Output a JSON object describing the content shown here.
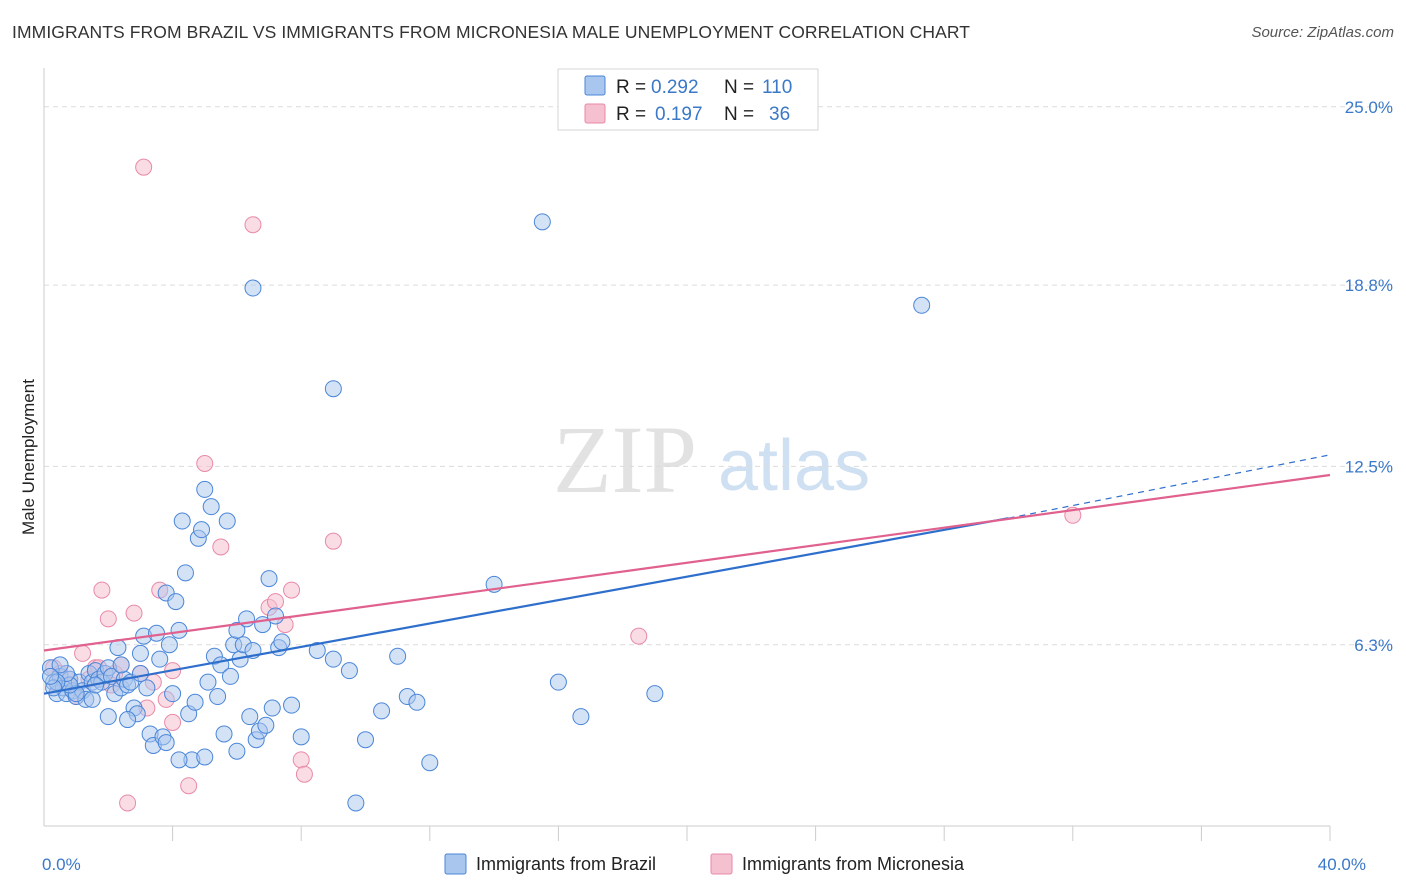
{
  "title": "IMMIGRANTS FROM BRAZIL VS IMMIGRANTS FROM MICRONESIA MALE UNEMPLOYMENT CORRELATION CHART",
  "source": "Source: ZipAtlas.com",
  "watermark": {
    "zip": "ZIP",
    "atlas": "atlas"
  },
  "colors": {
    "brazil_fill": "#a9c6ee",
    "brazil_stroke": "#4a86d8",
    "brazil_line": "#2f6fcc",
    "micronesia_fill": "#f5c0d0",
    "micronesia_stroke": "#e88aa8",
    "micronesia_line": "#e0608e",
    "tick_label": "#3a78c8",
    "grid": "#dcdcdc"
  },
  "legend": {
    "rows": [
      {
        "r_label": "R =",
        "r_value": "0.292",
        "n_label": "N =",
        "n_value": "110"
      },
      {
        "r_label": "R =",
        "r_value": "0.197",
        "n_label": "N =",
        "n_value": "36"
      }
    ]
  },
  "chart_data": {
    "type": "scatter",
    "title": "IMMIGRANTS FROM BRAZIL VS IMMIGRANTS FROM MICRONESIA MALE UNEMPLOYMENT CORRELATION CHART",
    "xlabel": "",
    "ylabel": "Male Unemployment",
    "xlim": [
      0,
      40
    ],
    "ylim": [
      0,
      26
    ],
    "x_tick_labels": [
      {
        "value": 0,
        "label": "0.0%"
      },
      {
        "value": 40,
        "label": "40.0%"
      }
    ],
    "y_tick_labels": [
      {
        "value": 6.3,
        "label": "6.3%"
      },
      {
        "value": 12.5,
        "label": "12.5%"
      },
      {
        "value": 18.8,
        "label": "18.8%"
      },
      {
        "value": 25.0,
        "label": "25.0%"
      }
    ],
    "x_minor_ticks": [
      4,
      8,
      12,
      16,
      20,
      24,
      28,
      32,
      36,
      40
    ],
    "legend_position": "top-center",
    "series": [
      {
        "name": "Immigrants from Brazil",
        "R": 0.292,
        "N": 110,
        "trend": {
          "x0": 0,
          "y0": 4.6,
          "x1": 30,
          "y1": 10.7,
          "dashed_to_x": 40,
          "dashed_to_y": 12.9
        },
        "points": [
          [
            0.2,
            5.5
          ],
          [
            0.3,
            5.0
          ],
          [
            0.4,
            4.6
          ],
          [
            0.5,
            5.2
          ],
          [
            0.6,
            4.8
          ],
          [
            0.7,
            4.6
          ],
          [
            0.8,
            5.1
          ],
          [
            0.9,
            4.7
          ],
          [
            1.0,
            4.5
          ],
          [
            1.1,
            5.0
          ],
          [
            1.2,
            4.7
          ],
          [
            1.3,
            4.4
          ],
          [
            1.4,
            5.3
          ],
          [
            1.5,
            5.0
          ],
          [
            1.6,
            5.4
          ],
          [
            1.7,
            5.1
          ],
          [
            1.8,
            5.0
          ],
          [
            1.9,
            5.3
          ],
          [
            2.0,
            5.5
          ],
          [
            2.1,
            5.2
          ],
          [
            2.2,
            4.6
          ],
          [
            2.3,
            6.2
          ],
          [
            2.4,
            4.8
          ],
          [
            2.5,
            5.1
          ],
          [
            2.6,
            4.9
          ],
          [
            2.7,
            5.0
          ],
          [
            2.8,
            4.1
          ],
          [
            2.9,
            3.9
          ],
          [
            3.0,
            6.0
          ],
          [
            3.1,
            6.6
          ],
          [
            3.2,
            4.8
          ],
          [
            3.3,
            3.2
          ],
          [
            3.4,
            2.8
          ],
          [
            3.5,
            6.7
          ],
          [
            3.6,
            5.8
          ],
          [
            3.7,
            3.1
          ],
          [
            3.8,
            8.1
          ],
          [
            3.9,
            6.3
          ],
          [
            4.0,
            4.6
          ],
          [
            4.1,
            7.8
          ],
          [
            4.2,
            6.8
          ],
          [
            4.3,
            10.6
          ],
          [
            4.4,
            8.8
          ],
          [
            4.5,
            3.9
          ],
          [
            4.6,
            2.3
          ],
          [
            4.7,
            4.3
          ],
          [
            4.8,
            10.0
          ],
          [
            4.9,
            10.3
          ],
          [
            5.0,
            11.7
          ],
          [
            5.1,
            5.0
          ],
          [
            5.2,
            11.1
          ],
          [
            5.3,
            5.9
          ],
          [
            5.4,
            4.5
          ],
          [
            5.5,
            5.6
          ],
          [
            5.6,
            3.2
          ],
          [
            5.7,
            10.6
          ],
          [
            5.8,
            5.2
          ],
          [
            5.9,
            6.3
          ],
          [
            6.0,
            6.8
          ],
          [
            6.1,
            5.8
          ],
          [
            6.2,
            6.3
          ],
          [
            6.3,
            7.2
          ],
          [
            6.4,
            3.8
          ],
          [
            6.5,
            6.1
          ],
          [
            6.6,
            3.0
          ],
          [
            6.7,
            3.3
          ],
          [
            6.8,
            7.0
          ],
          [
            6.9,
            3.5
          ],
          [
            7.0,
            8.6
          ],
          [
            7.1,
            4.1
          ],
          [
            7.2,
            7.3
          ],
          [
            7.3,
            6.2
          ],
          [
            7.4,
            6.4
          ],
          [
            8.0,
            3.1
          ],
          [
            8.5,
            6.1
          ],
          [
            9.0,
            5.8
          ],
          [
            9.5,
            5.4
          ],
          [
            10.0,
            3.0
          ],
          [
            10.5,
            4.0
          ],
          [
            11.0,
            5.9
          ],
          [
            11.3,
            4.5
          ],
          [
            11.6,
            4.3
          ],
          [
            12.0,
            2.2
          ],
          [
            14.0,
            8.4
          ],
          [
            16.0,
            5.0
          ],
          [
            16.7,
            3.8
          ],
          [
            19.0,
            4.6
          ],
          [
            6.5,
            18.7
          ],
          [
            9.0,
            15.2
          ],
          [
            15.5,
            21.0
          ],
          [
            27.3,
            18.1
          ],
          [
            9.7,
            0.8
          ],
          [
            5.0,
            2.4
          ],
          [
            4.2,
            2.3
          ],
          [
            3.8,
            2.9
          ],
          [
            2.6,
            3.7
          ],
          [
            2.0,
            3.8
          ],
          [
            1.5,
            4.4
          ],
          [
            1.0,
            4.6
          ],
          [
            0.8,
            4.9
          ],
          [
            0.7,
            5.3
          ],
          [
            0.5,
            5.6
          ],
          [
            0.4,
            5.0
          ],
          [
            0.3,
            4.8
          ],
          [
            0.2,
            5.2
          ],
          [
            1.6,
            4.9
          ],
          [
            2.4,
            5.6
          ],
          [
            3.0,
            5.3
          ],
          [
            6.0,
            2.6
          ],
          [
            7.7,
            4.2
          ]
        ]
      },
      {
        "name": "Immigrants from Micronesia",
        "R": 0.197,
        "N": 36,
        "trend": {
          "x0": 0,
          "y0": 6.1,
          "x1": 40,
          "y1": 12.2
        },
        "points": [
          [
            0.3,
            5.5
          ],
          [
            0.5,
            5.3
          ],
          [
            0.8,
            5.1
          ],
          [
            1.0,
            4.5
          ],
          [
            1.2,
            6.0
          ],
          [
            1.4,
            5.1
          ],
          [
            1.6,
            5.5
          ],
          [
            1.8,
            8.2
          ],
          [
            2.0,
            7.2
          ],
          [
            2.2,
            5.3
          ],
          [
            2.4,
            5.6
          ],
          [
            2.6,
            0.8
          ],
          [
            2.8,
            7.4
          ],
          [
            3.0,
            5.3
          ],
          [
            3.1,
            22.9
          ],
          [
            3.2,
            4.1
          ],
          [
            3.4,
            5.0
          ],
          [
            3.6,
            8.2
          ],
          [
            3.8,
            4.4
          ],
          [
            4.0,
            3.6
          ],
          [
            4.0,
            5.4
          ],
          [
            4.5,
            1.4
          ],
          [
            5.0,
            12.6
          ],
          [
            5.5,
            9.7
          ],
          [
            6.5,
            20.9
          ],
          [
            7.0,
            7.6
          ],
          [
            7.2,
            7.8
          ],
          [
            7.5,
            7.0
          ],
          [
            7.7,
            8.2
          ],
          [
            8.0,
            2.3
          ],
          [
            8.1,
            1.8
          ],
          [
            9.0,
            9.9
          ],
          [
            18.5,
            6.6
          ],
          [
            32.0,
            10.8
          ],
          [
            1.7,
            5.5
          ],
          [
            2.1,
            4.9
          ]
        ]
      }
    ]
  },
  "bottom_legend": {
    "brazil_label": "Immigrants from Brazil",
    "micronesia_label": "Immigrants from Micronesia"
  }
}
